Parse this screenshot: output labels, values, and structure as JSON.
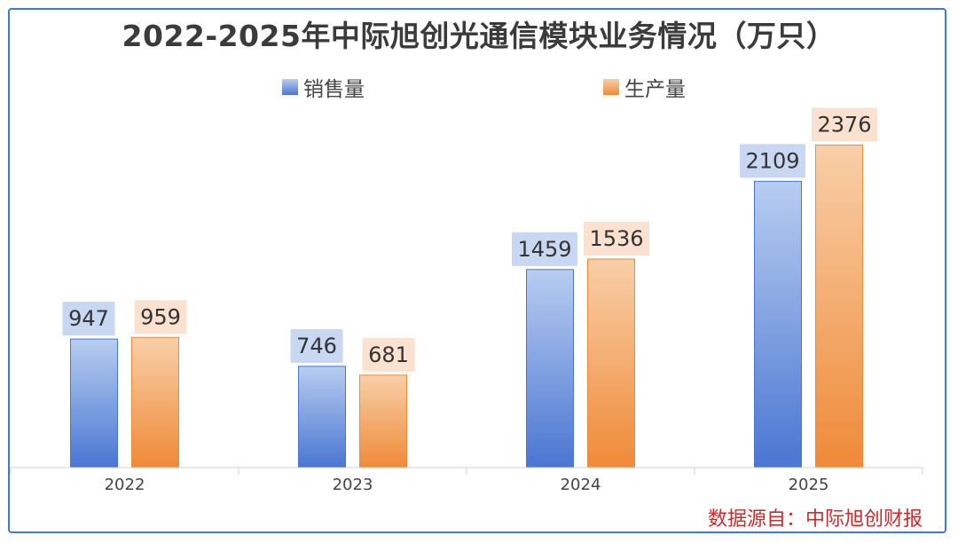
{
  "chart_data": {
    "type": "bar",
    "title": "2022-2025年中际旭创光通信模块业务情况（万只）",
    "categories": [
      "2022",
      "2023",
      "2024",
      "2025"
    ],
    "series": [
      {
        "name": "销售量",
        "values": [
          947,
          746,
          1459,
          2109
        ],
        "color": "#4a76d2",
        "light": "#b8cdf0",
        "labelbg": "#c8d8f2"
      },
      {
        "name": "生产量",
        "values": [
          959,
          681,
          1536,
          2376
        ],
        "color": "#ef8a38",
        "light": "#f8cfa8",
        "labelbg": "#fbe2d0"
      }
    ],
    "legend_position": "top",
    "grid": false,
    "source": "数据源自：中际旭创财报"
  }
}
